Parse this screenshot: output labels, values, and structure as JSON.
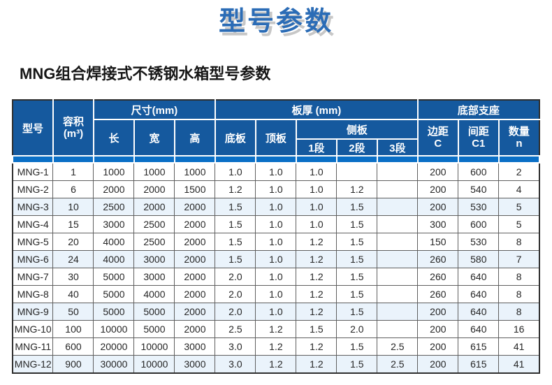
{
  "page": {
    "title": "型号参数",
    "subtitle": "MNG组合焊接式不锈钢水箱型号参数"
  },
  "colors": {
    "title_blue": "#2b6cb6",
    "title_shadow_gray": "#c7c7c7",
    "header_blue": "#15599e",
    "header_strip_blue": "#0a6fc6",
    "row_alt_background": "#eaf3fb",
    "border_dark": "#2e2e2e"
  },
  "table": {
    "header": {
      "model": "型号",
      "capacity": [
        "容积",
        "(m³)"
      ],
      "dimensions_group": "尺寸(mm)",
      "length": "长",
      "width": "宽",
      "height": "高",
      "thickness_group": "板厚 (mm)",
      "bottom_plate": "底板",
      "top_plate": "顶板",
      "side_plate_group": "侧板",
      "side_seg1": "1段",
      "side_seg2": "2段",
      "side_seg3": "3段",
      "support_group": "底部支座",
      "edge_distance": [
        "边距",
        "C"
      ],
      "spacing": [
        "间距",
        "C1"
      ],
      "quantity": [
        "数量",
        "n"
      ]
    },
    "rows": [
      [
        "MNG-1",
        "1",
        "1000",
        "1000",
        "1000",
        "1.0",
        "1.0",
        "1.0",
        "",
        "",
        "200",
        "600",
        "2"
      ],
      [
        "MNG-2",
        "6",
        "2000",
        "2000",
        "1500",
        "1.2",
        "1.0",
        "1.0",
        "1.2",
        "",
        "200",
        "540",
        "4"
      ],
      [
        "MNG-3",
        "10",
        "2500",
        "2000",
        "2000",
        "1.5",
        "1.0",
        "1.0",
        "1.5",
        "",
        "200",
        "530",
        "5"
      ],
      [
        "MNG-4",
        "15",
        "3000",
        "2500",
        "2000",
        "1.5",
        "1.0",
        "1.0",
        "1.5",
        "",
        "300",
        "600",
        "5"
      ],
      [
        "MNG-5",
        "20",
        "4000",
        "2500",
        "2000",
        "1.5",
        "1.0",
        "1.2",
        "1.5",
        "",
        "150",
        "530",
        "8"
      ],
      [
        "MNG-6",
        "24",
        "4000",
        "3000",
        "2000",
        "1.5",
        "1.0",
        "1.2",
        "1.5",
        "",
        "260",
        "580",
        "7"
      ],
      [
        "MNG-7",
        "30",
        "5000",
        "3000",
        "2000",
        "2.0",
        "1.0",
        "1.2",
        "1.5",
        "",
        "260",
        "640",
        "8"
      ],
      [
        "MNG-8",
        "40",
        "5000",
        "4000",
        "2000",
        "2.0",
        "1.0",
        "1.2",
        "1.5",
        "",
        "260",
        "640",
        "8"
      ],
      [
        "MNG-9",
        "50",
        "5000",
        "5000",
        "2000",
        "2.0",
        "1.0",
        "1.2",
        "1.5",
        "",
        "200",
        "640",
        "8"
      ],
      [
        "MNG-10",
        "100",
        "10000",
        "5000",
        "2000",
        "2.5",
        "1.2",
        "1.5",
        "2.0",
        "",
        "200",
        "640",
        "16"
      ],
      [
        "MNG-11",
        "600",
        "20000",
        "10000",
        "3000",
        "3.0",
        "1.2",
        "1.2",
        "1.5",
        "2.5",
        "200",
        "615",
        "41"
      ],
      [
        "MNG-12",
        "900",
        "30000",
        "10000",
        "3000",
        "3.0",
        "1.2",
        "1.2",
        "1.5",
        "2.5",
        "200",
        "615",
        "41"
      ]
    ]
  }
}
